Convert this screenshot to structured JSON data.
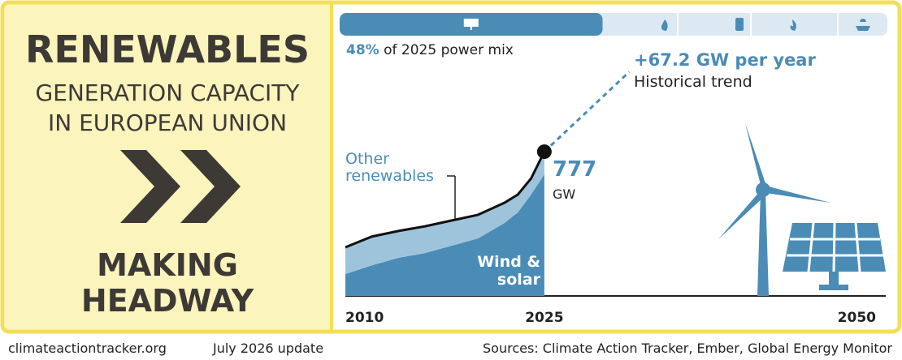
{
  "chart_data": {
    "type": "stacked-area",
    "title": "RENEWABLES",
    "subtitle": "GENERATION CAPACITY IN EUROPEAN UNION",
    "status": "MAKING HEADWAY",
    "power_mix_share": {
      "value": 48,
      "label": "48%"
    },
    "power_mix_text": "of 2025 power mix",
    "x": [
      2010,
      2012,
      2014,
      2016,
      2018,
      2020,
      2022,
      2023,
      2024,
      2025
    ],
    "series": [
      {
        "name": "Wind & solar",
        "color": "#4a8cb6",
        "values": [
          118,
          165,
          205,
          231,
          270,
          310,
          393,
          450,
          546,
          655
        ]
      },
      {
        "name": "Other renewables",
        "color": "#9ec4dc",
        "values": [
          144,
          155,
          145,
          144,
          136,
          127,
          109,
          96,
          87,
          122
        ]
      }
    ],
    "end_value": 777,
    "end_unit": "GW",
    "trend": {
      "value": 67.2,
      "label": "+67.2 GW per year"
    },
    "trend_text": "Historical trend",
    "xlim": [
      2010,
      2050
    ],
    "xticks": [
      2010,
      2025,
      2050
    ],
    "footer": {
      "site": "climateactiontracker.org",
      "update": "July 2026 update",
      "sources": "Sources: Climate Action Tracker, Ember, Global Energy Monitor"
    }
  }
}
